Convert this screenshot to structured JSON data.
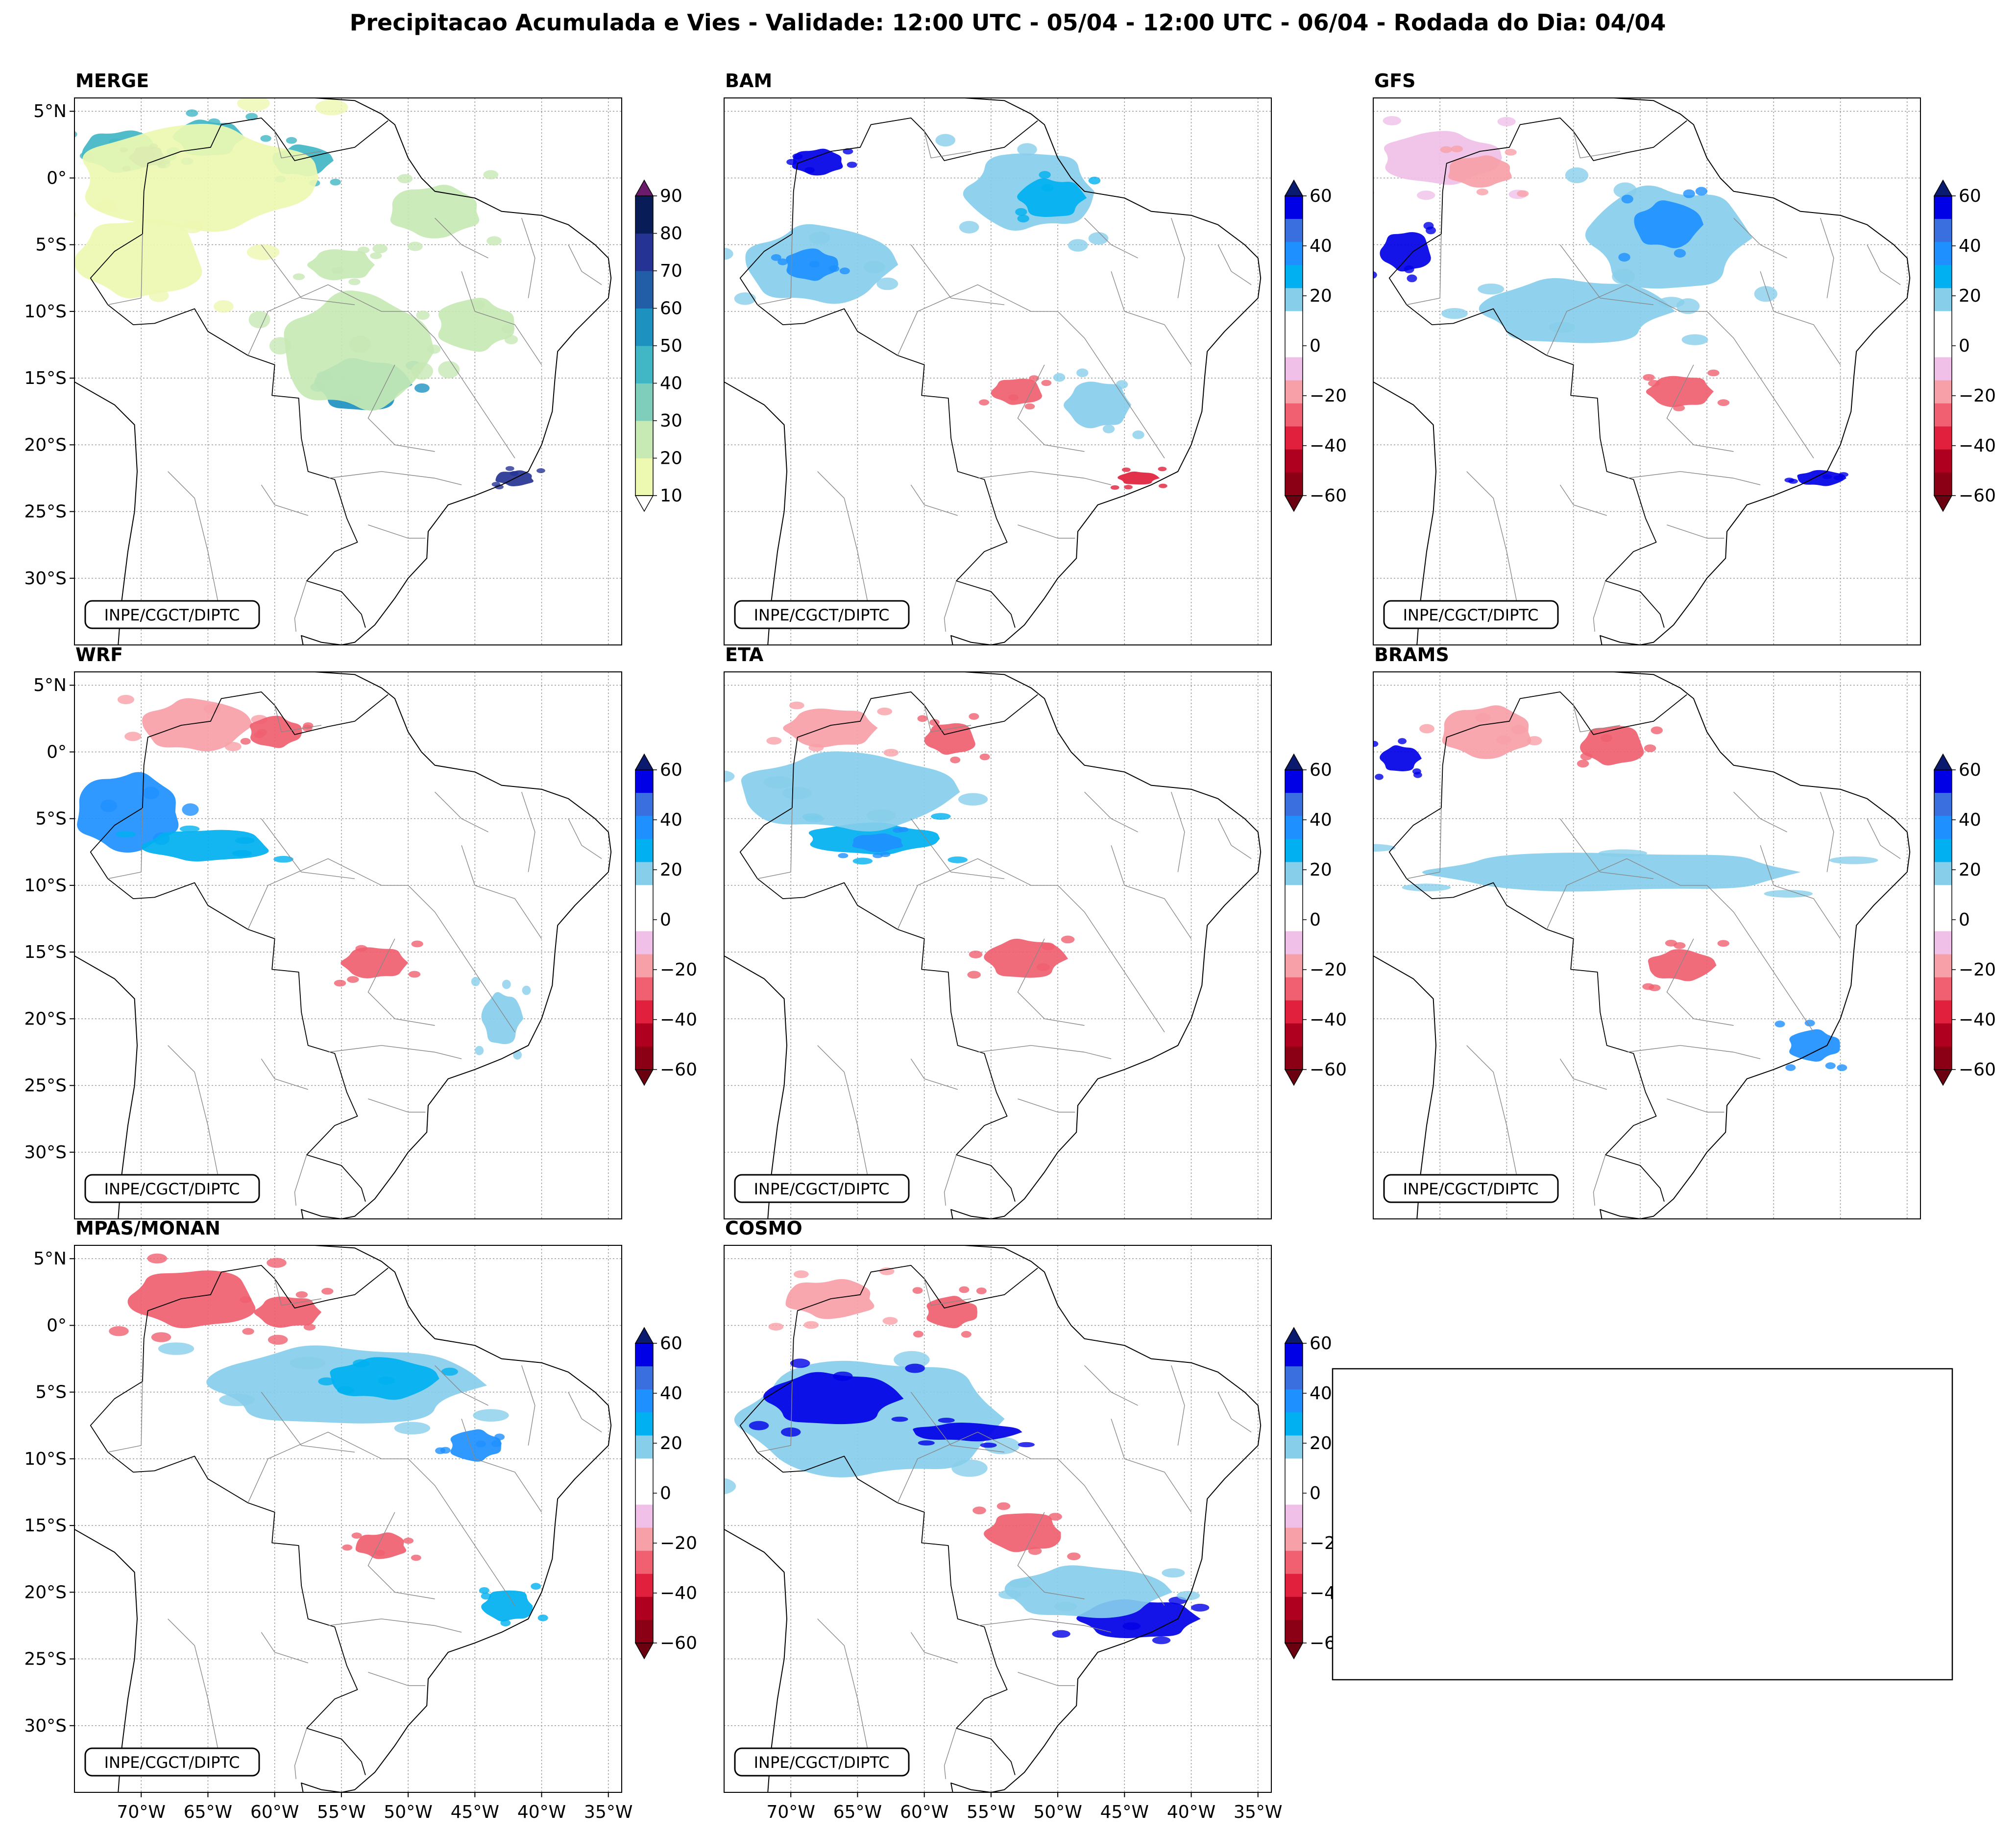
{
  "figure": {
    "title": "Precipitacao Acumulada e Vies - Validade: 12:00 UTC - 05/04 - 12:00 UTC - 06/04 - Rodada do Dia: 04/04",
    "credit": "INPE/CGCT/DIPTC"
  },
  "axes": {
    "lat_labels": [
      "5°N",
      "0°",
      "5°S",
      "10°S",
      "15°S",
      "20°S",
      "25°S",
      "30°S"
    ],
    "lon_labels": [
      "70°W",
      "65°W",
      "60°W",
      "55°W",
      "50°W",
      "45°W",
      "40°W",
      "35°W"
    ],
    "lat_values": [
      5,
      0,
      -5,
      -10,
      -15,
      -20,
      -25,
      -30
    ],
    "lon_values": [
      -70,
      -65,
      -60,
      -55,
      -50,
      -45,
      -40,
      -35
    ],
    "lon_range": [
      -75,
      -34
    ],
    "lat_range": [
      -35,
      6
    ]
  },
  "panels": [
    {
      "name": "MERGE",
      "type": "precip"
    },
    {
      "name": "BAM",
      "type": "bias"
    },
    {
      "name": "GFS",
      "type": "bias"
    },
    {
      "name": "WRF",
      "type": "bias"
    },
    {
      "name": "ETA",
      "type": "bias"
    },
    {
      "name": "BRAMS",
      "type": "bias"
    },
    {
      "name": "MPAS/MONAN",
      "type": "bias"
    },
    {
      "name": "COSMO",
      "type": "bias"
    }
  ],
  "colorbars": {
    "precip": {
      "ticks": [
        "10",
        "20",
        "30",
        "40",
        "50",
        "60",
        "70",
        "80",
        "90"
      ],
      "colors": [
        "#edf8b1",
        "#c7e9b4",
        "#7fcdbb",
        "#41b6c4",
        "#1d91c0",
        "#225ea8",
        "#253494",
        "#081d58"
      ],
      "over": "#6a1b6a",
      "under": "#ffffff"
    },
    "bias": {
      "ticks": [
        "60",
        "40",
        "20",
        "0",
        "−20",
        "−40",
        "−60"
      ],
      "colors": [
        "#0000e6",
        "#3a6fe0",
        "#1e90ff",
        "#00b0f0",
        "#87ceeb",
        "#ffffff",
        "#ffffff",
        "#f0c0e8",
        "#f7a0a8",
        "#f06070",
        "#e0203c",
        "#b00020",
        "#8b0015"
      ],
      "over": "#0a1a6e",
      "under": "#6b0010"
    }
  },
  "palette": {
    "bias_pos": [
      "#87ceeb",
      "#00b0f0",
      "#1e90ff",
      "#0000e6",
      "#0a1a6e"
    ],
    "bias_neg": [
      "#f0c0e8",
      "#f7a0a8",
      "#f06070",
      "#e0203c",
      "#8b0015"
    ],
    "precip": [
      "#edf8b1",
      "#c7e9b4",
      "#7fcdbb",
      "#41b6c4",
      "#1d91c0",
      "#225ea8",
      "#253494"
    ]
  },
  "features": {
    "MERGE": [
      {
        "lon": -71.5,
        "lat": 2.0,
        "rx": 3.0,
        "ry": 1.6,
        "level": 3
      },
      {
        "lon": -69.5,
        "lat": 1.6,
        "rx": 1.4,
        "ry": 0.8,
        "level": 5
      },
      {
        "lon": -65.0,
        "lat": 3.0,
        "rx": 2.6,
        "ry": 1.4,
        "level": 3
      },
      {
        "lon": -58.0,
        "lat": 1.3,
        "rx": 2.2,
        "ry": 1.2,
        "level": 3
      },
      {
        "lon": -66.0,
        "lat": 0.0,
        "rx": 9.0,
        "ry": 4.0,
        "level": 0
      },
      {
        "lon": -48.0,
        "lat": -2.5,
        "rx": 3.5,
        "ry": 2.0,
        "level": 1
      },
      {
        "lon": -70.0,
        "lat": -6.0,
        "rx": 5.0,
        "ry": 3.0,
        "level": 0
      },
      {
        "lon": -55.0,
        "lat": -6.5,
        "rx": 2.5,
        "ry": 1.2,
        "level": 1
      },
      {
        "lon": -53.5,
        "lat": -15.5,
        "rx": 3.5,
        "ry": 2.0,
        "level": 4
      },
      {
        "lon": -54.0,
        "lat": -13.0,
        "rx": 5.5,
        "ry": 4.5,
        "level": 1
      },
      {
        "lon": -45.0,
        "lat": -11.0,
        "rx": 3.0,
        "ry": 2.0,
        "level": 1
      },
      {
        "lon": -42.0,
        "lat": -22.5,
        "rx": 1.5,
        "ry": 0.6,
        "level": 6
      }
    ],
    "BAM": [
      {
        "lon": -52.0,
        "lat": -1.0,
        "rx": 5.0,
        "ry": 3.0,
        "level": 0
      },
      {
        "lon": -50.5,
        "lat": -1.5,
        "rx": 2.5,
        "ry": 1.5,
        "level": 1
      },
      {
        "lon": -68.0,
        "lat": -6.5,
        "rx": 5.5,
        "ry": 3.0,
        "level": 0
      },
      {
        "lon": -68.5,
        "lat": -6.5,
        "rx": 2.0,
        "ry": 1.2,
        "level": 2
      },
      {
        "lon": -68.0,
        "lat": 1.2,
        "rx": 2.0,
        "ry": 1.0,
        "level": 3
      },
      {
        "lon": -53.0,
        "lat": -16.0,
        "rx": 2.0,
        "ry": 1.0,
        "level": -3
      },
      {
        "lon": -47.0,
        "lat": -17.0,
        "rx": 2.5,
        "ry": 1.8,
        "level": 0
      },
      {
        "lon": -44.0,
        "lat": -22.5,
        "rx": 1.5,
        "ry": 0.5,
        "level": -4
      }
    ],
    "GFS": [
      {
        "lon": -53.0,
        "lat": -4.5,
        "rx": 6.0,
        "ry": 4.0,
        "level": 0
      },
      {
        "lon": -53.0,
        "lat": -3.5,
        "rx": 2.5,
        "ry": 1.8,
        "level": 2
      },
      {
        "lon": -70.0,
        "lat": 1.5,
        "rx": 4.5,
        "ry": 2.0,
        "level": -1
      },
      {
        "lon": -67.0,
        "lat": 0.5,
        "rx": 2.5,
        "ry": 1.2,
        "level": -2
      },
      {
        "lon": -72.5,
        "lat": -5.5,
        "rx": 2.0,
        "ry": 1.5,
        "level": 3
      },
      {
        "lon": -52.0,
        "lat": -16.0,
        "rx": 2.5,
        "ry": 1.2,
        "level": -3
      },
      {
        "lon": -60.0,
        "lat": -10.0,
        "rx": 7.0,
        "ry": 2.5,
        "level": 0
      },
      {
        "lon": -41.5,
        "lat": -22.5,
        "rx": 1.8,
        "ry": 0.6,
        "level": 3
      }
    ],
    "WRF": [
      {
        "lon": -66.0,
        "lat": 2.0,
        "rx": 4.0,
        "ry": 2.0,
        "level": -2
      },
      {
        "lon": -60.0,
        "lat": 1.5,
        "rx": 2.0,
        "ry": 1.2,
        "level": -3
      },
      {
        "lon": -71.0,
        "lat": -4.5,
        "rx": 4.0,
        "ry": 3.0,
        "level": 2
      },
      {
        "lon": -65.0,
        "lat": -7.0,
        "rx": 5.0,
        "ry": 1.2,
        "level": 1
      },
      {
        "lon": -52.5,
        "lat": -15.8,
        "rx": 2.5,
        "ry": 1.2,
        "level": -3
      },
      {
        "lon": -43.0,
        "lat": -20.0,
        "rx": 1.5,
        "ry": 2.0,
        "level": 0
      }
    ],
    "ETA": [
      {
        "lon": -64.0,
        "lat": -6.5,
        "rx": 5.0,
        "ry": 1.2,
        "level": 1
      },
      {
        "lon": -63.5,
        "lat": -6.8,
        "rx": 2.0,
        "ry": 0.7,
        "level": 2
      },
      {
        "lon": -58.0,
        "lat": 1.0,
        "rx": 2.0,
        "ry": 1.2,
        "level": -3
      },
      {
        "lon": -67.0,
        "lat": 1.8,
        "rx": 3.5,
        "ry": 1.5,
        "level": -2
      },
      {
        "lon": -52.5,
        "lat": -15.5,
        "rx": 3.0,
        "ry": 1.5,
        "level": -3
      },
      {
        "lon": -66.0,
        "lat": -3.0,
        "rx": 8.0,
        "ry": 3.0,
        "level": 0
      }
    ],
    "BRAMS": [
      {
        "lon": -66.5,
        "lat": 1.5,
        "rx": 3.5,
        "ry": 2.0,
        "level": -2
      },
      {
        "lon": -57.0,
        "lat": 0.5,
        "rx": 2.5,
        "ry": 1.5,
        "level": -3
      },
      {
        "lon": -57.0,
        "lat": -9.0,
        "rx": 14.0,
        "ry": 1.5,
        "level": 0
      },
      {
        "lon": -73.0,
        "lat": -0.5,
        "rx": 1.5,
        "ry": 1.0,
        "level": 3
      },
      {
        "lon": -52.0,
        "lat": -16.0,
        "rx": 2.5,
        "ry": 1.2,
        "level": -3
      },
      {
        "lon": -42.0,
        "lat": -22.0,
        "rx": 2.0,
        "ry": 1.2,
        "level": 2
      }
    ],
    "MPAS/MONAN": [
      {
        "lon": -66.0,
        "lat": 2.0,
        "rx": 5.0,
        "ry": 2.2,
        "level": -3
      },
      {
        "lon": -59.0,
        "lat": 1.0,
        "rx": 2.5,
        "ry": 1.2,
        "level": -3
      },
      {
        "lon": -55.0,
        "lat": -4.5,
        "rx": 10.0,
        "ry": 3.0,
        "level": 0
      },
      {
        "lon": -52.0,
        "lat": -4.0,
        "rx": 4.0,
        "ry": 1.6,
        "level": 1
      },
      {
        "lon": -45.0,
        "lat": -9.0,
        "rx": 2.0,
        "ry": 1.2,
        "level": 2
      },
      {
        "lon": -52.0,
        "lat": -16.5,
        "rx": 2.0,
        "ry": 1.0,
        "level": -3
      },
      {
        "lon": -42.5,
        "lat": -21.0,
        "rx": 2.0,
        "ry": 1.2,
        "level": 1
      }
    ],
    "COSMO": [
      {
        "lon": -64.0,
        "lat": -7.0,
        "rx": 10.0,
        "ry": 4.5,
        "level": 0
      },
      {
        "lon": -67.0,
        "lat": -5.5,
        "rx": 5.0,
        "ry": 2.0,
        "level": 3
      },
      {
        "lon": -57.0,
        "lat": -8.0,
        "rx": 4.0,
        "ry": 0.7,
        "level": 3
      },
      {
        "lon": -58.0,
        "lat": 1.0,
        "rx": 2.0,
        "ry": 1.2,
        "level": -3
      },
      {
        "lon": -67.0,
        "lat": 2.0,
        "rx": 3.5,
        "ry": 1.5,
        "level": -2
      },
      {
        "lon": -52.5,
        "lat": -15.5,
        "rx": 3.0,
        "ry": 1.5,
        "level": -3
      },
      {
        "lon": -44.0,
        "lat": -22.0,
        "rx": 4.5,
        "ry": 1.5,
        "level": 3
      },
      {
        "lon": -48.0,
        "lat": -20.0,
        "rx": 6.0,
        "ry": 2.0,
        "level": 0
      }
    ]
  }
}
